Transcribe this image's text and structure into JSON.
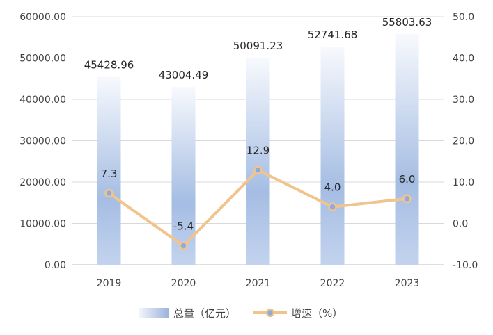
{
  "chart_data": {
    "type": "bar",
    "categories": [
      "2019",
      "2020",
      "2021",
      "2022",
      "2023"
    ],
    "series": [
      {
        "name": "总量（亿元）",
        "type": "bar",
        "axis": "left",
        "values": [
          45428.96,
          43004.49,
          50091.23,
          52741.68,
          55803.63
        ],
        "labels": [
          "45428.96",
          "43004.49",
          "50091.23",
          "52741.68",
          "55803.63"
        ]
      },
      {
        "name": "增速（%）",
        "type": "line",
        "axis": "right",
        "values": [
          7.3,
          -5.4,
          12.9,
          4.0,
          6.0
        ],
        "labels": [
          "7.3",
          "-5.4",
          "12.9",
          "4.0",
          "6.0"
        ]
      }
    ],
    "left_axis": {
      "ylim": [
        0,
        60000
      ],
      "ticks": [
        0,
        10000,
        20000,
        30000,
        40000,
        50000,
        60000
      ],
      "tick_labels": [
        "0.00",
        "10000.00",
        "20000.00",
        "30000.00",
        "40000.00",
        "50000.00",
        "60000.00"
      ]
    },
    "right_axis": {
      "ylim": [
        -10,
        50
      ],
      "ticks": [
        -10,
        0,
        10,
        20,
        30,
        40,
        50
      ],
      "tick_labels": [
        "-10.0",
        "0.0",
        "10.0",
        "20.0",
        "30.0",
        "40.0",
        "50.0"
      ]
    },
    "grid": true,
    "legend": "bottom",
    "colors": {
      "bar_top": "#f4f6fb",
      "bar_bottom": "#95aedb",
      "line": "#f2c48d",
      "marker_fill": "#8faadc",
      "grid": "#d9d9d9"
    }
  }
}
